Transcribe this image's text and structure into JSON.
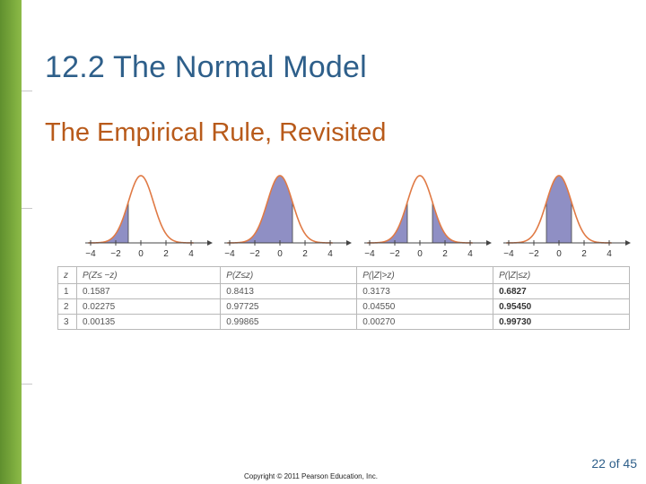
{
  "slide": {
    "title": "12.2 The Normal Model",
    "subtitle": "The Empirical Rule, Revisited",
    "page_number": "22 of 45",
    "copyright": "Copyright © 2011 Pearson Education, Inc."
  },
  "curves": {
    "axis_ticks": [
      "−4",
      "−2",
      "0",
      "2",
      "4"
    ],
    "shade_color": "#8f8fc4",
    "curve_color": "#e07a45",
    "panels": [
      {
        "name": "left-tail",
        "shaded": "z<=-1"
      },
      {
        "name": "left-cumulative",
        "shaded": "z<=1"
      },
      {
        "name": "two-tails",
        "shaded": "|z|>1"
      },
      {
        "name": "center",
        "shaded": "|z|<=1"
      }
    ]
  },
  "table": {
    "headers": [
      "z",
      "P(Z≤ −z)",
      "P(Z≤z)",
      "P(|Z|>z)",
      "P(|Z|≤z)"
    ],
    "rows": [
      [
        "1",
        "0.1587",
        "0.8413",
        "0.3173",
        "0.6827"
      ],
      [
        "2",
        "0.02275",
        "0.97725",
        "0.04550",
        "0.95450"
      ],
      [
        "3",
        "0.00135",
        "0.99865",
        "0.00270",
        "0.99730"
      ]
    ]
  }
}
